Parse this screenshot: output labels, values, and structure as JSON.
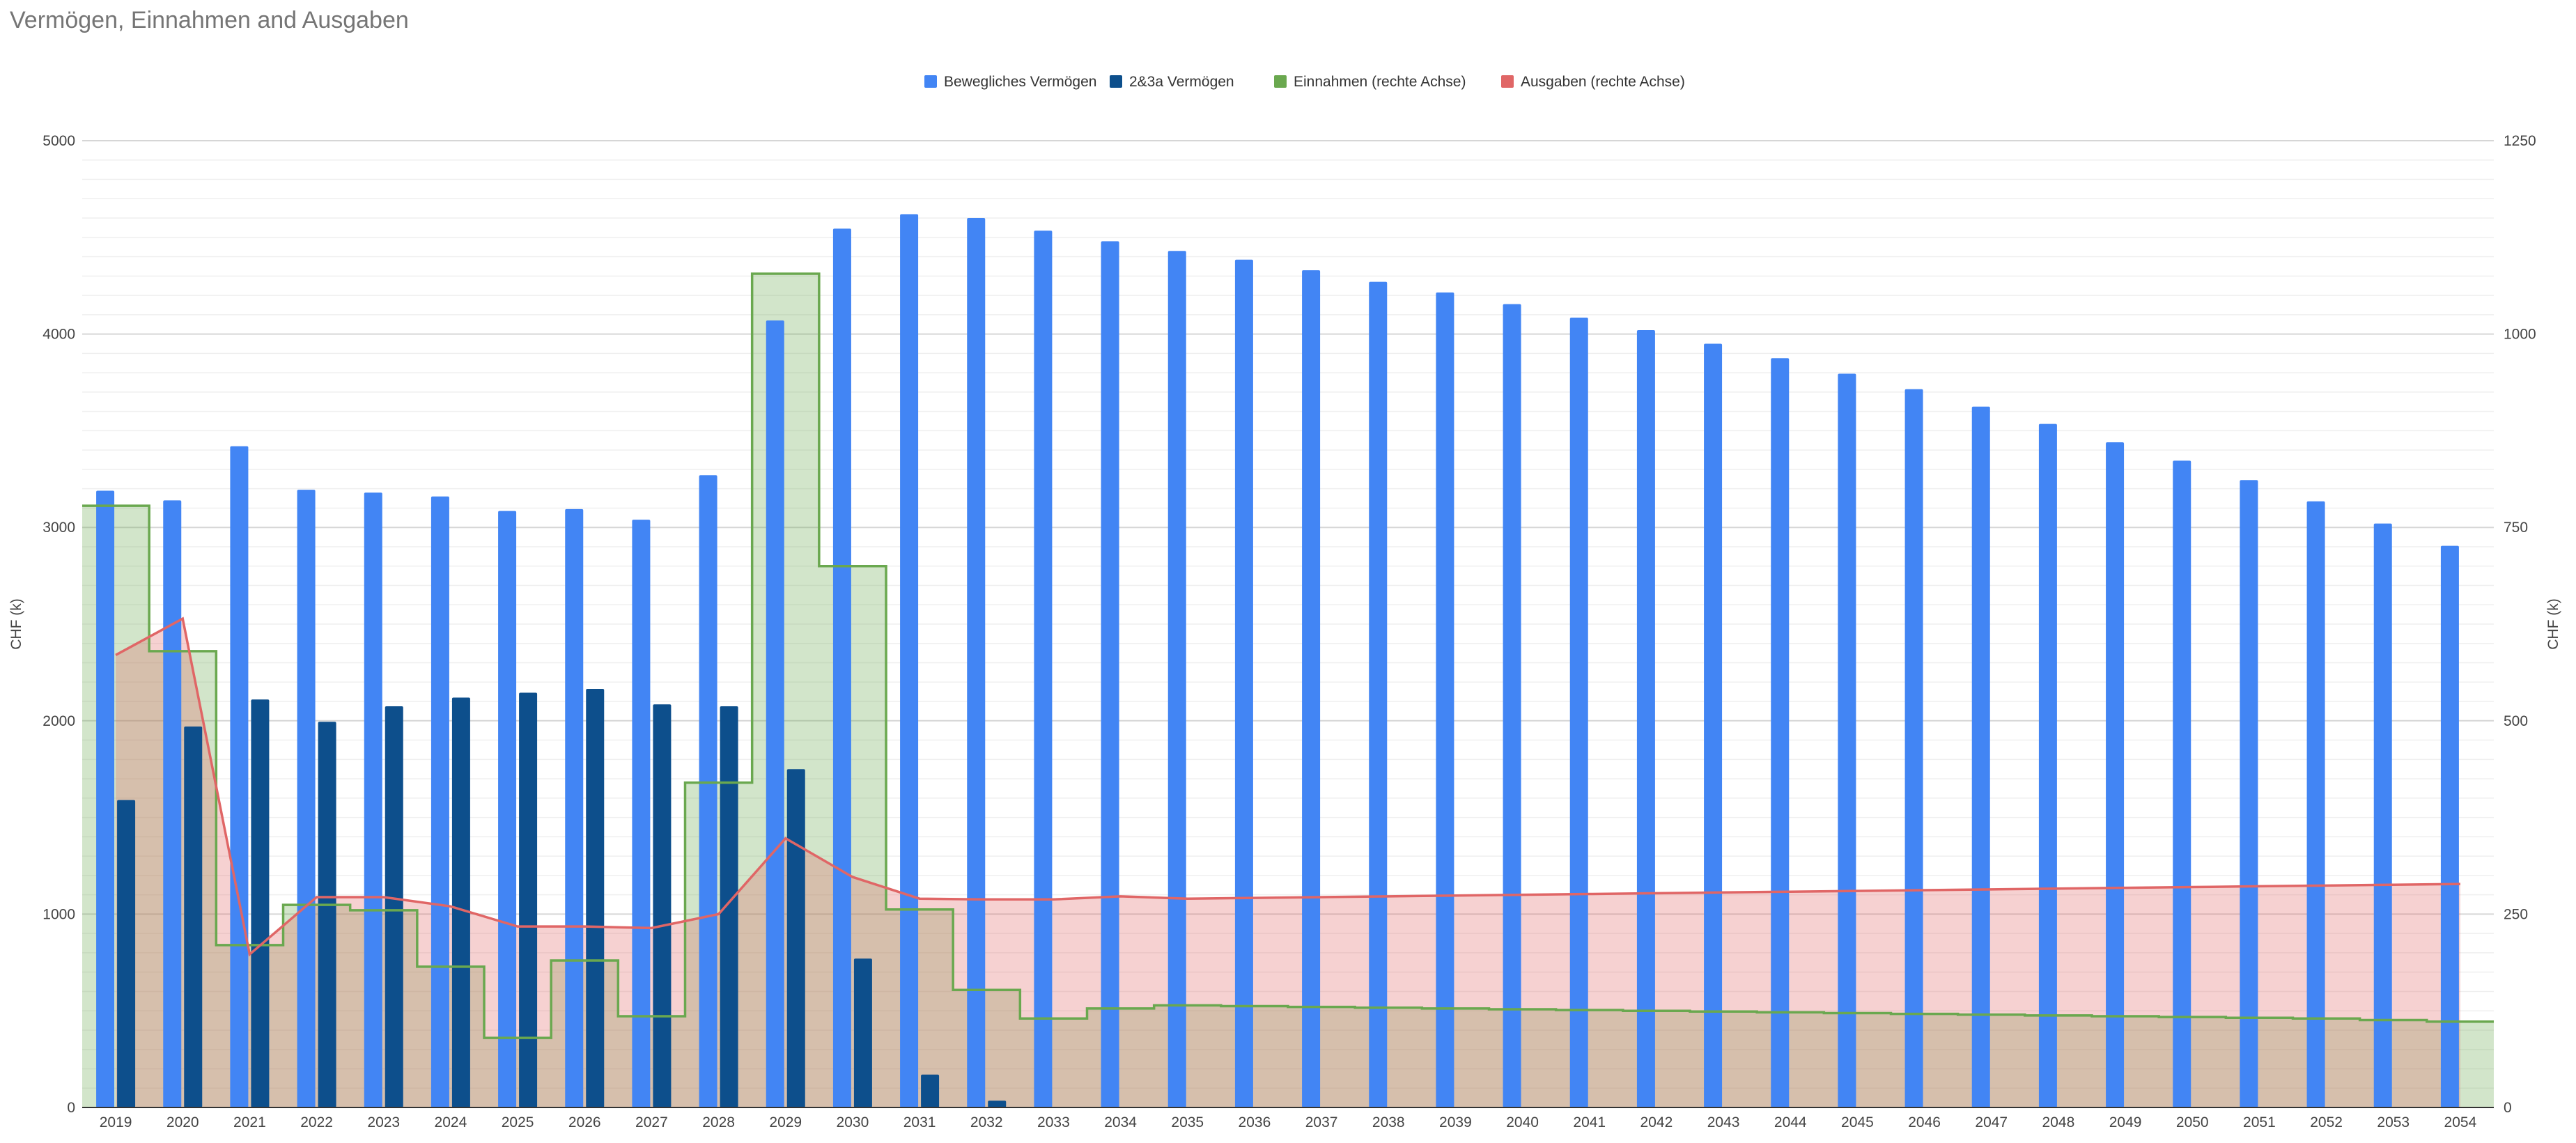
{
  "chart_data": {
    "type": "bar",
    "title": "Vermögen, Einnahmen and Ausgaben",
    "ylabel_left": "CHF (k)",
    "ylabel_right": "CHF (k)",
    "ylim_left": [
      0,
      5000
    ],
    "ylim_right": [
      0,
      1250
    ],
    "yticks_left": [
      0,
      1000,
      2000,
      3000,
      4000,
      5000
    ],
    "yticks_right": [
      0,
      250,
      500,
      750,
      1000,
      1250
    ],
    "legend_position": "top",
    "grid": true,
    "categories": [
      "2019",
      "2020",
      "2021",
      "2022",
      "2023",
      "2024",
      "2025",
      "2026",
      "2027",
      "2028",
      "2029",
      "2030",
      "2031",
      "2032",
      "2033",
      "2034",
      "2035",
      "2036",
      "2037",
      "2038",
      "2039",
      "2040",
      "2041",
      "2042",
      "2043",
      "2044",
      "2045",
      "2046",
      "2047",
      "2048",
      "2049",
      "2050",
      "2051",
      "2052",
      "2053",
      "2054"
    ],
    "series": [
      {
        "name": "Bewegliches Vermögen",
        "type": "bar",
        "axis": "left",
        "color": "#4285f4",
        "values": [
          3190,
          3140,
          3420,
          3195,
          3180,
          3160,
          3085,
          3095,
          3040,
          3270,
          4070,
          4545,
          4620,
          4600,
          4535,
          4480,
          4430,
          4385,
          4330,
          4270,
          4215,
          4155,
          4085,
          4020,
          3950,
          3875,
          3795,
          3715,
          3625,
          3535,
          3440,
          3345,
          3245,
          3135,
          3020,
          2905
        ]
      },
      {
        "name": "2&3a Vermögen",
        "type": "bar",
        "axis": "left",
        "color": "#0d4f8c",
        "values": [
          1590,
          1970,
          2110,
          1995,
          2075,
          2120,
          2145,
          2165,
          2085,
          2075,
          1750,
          770,
          170,
          35,
          0,
          0,
          0,
          0,
          0,
          0,
          0,
          0,
          0,
          0,
          0,
          0,
          0,
          0,
          0,
          0,
          0,
          0,
          0,
          0,
          0,
          0
        ]
      },
      {
        "name": "Einnahmen (rechte Achse)",
        "type": "stepped-area",
        "axis": "right",
        "color": "#6aa84f",
        "values": [
          778,
          590,
          210,
          262,
          255,
          182,
          90,
          190,
          118,
          420,
          1078,
          700,
          256,
          152,
          115,
          128,
          132,
          131,
          130,
          129,
          128,
          127,
          126,
          125,
          124,
          123,
          122,
          121,
          120,
          119,
          118,
          117,
          116,
          115,
          113,
          111
        ]
      },
      {
        "name": "Ausgaben (rechte Achse)",
        "type": "area",
        "axis": "right",
        "color": "#e06666",
        "values": [
          585,
          632,
          198,
          272,
          272,
          260,
          234,
          234,
          232,
          250,
          348,
          298,
          270,
          269,
          269,
          273,
          270,
          271,
          272,
          273,
          274,
          275,
          276,
          277,
          278,
          279,
          280,
          281,
          282,
          283,
          284,
          285,
          286,
          287,
          288,
          289
        ]
      }
    ]
  }
}
